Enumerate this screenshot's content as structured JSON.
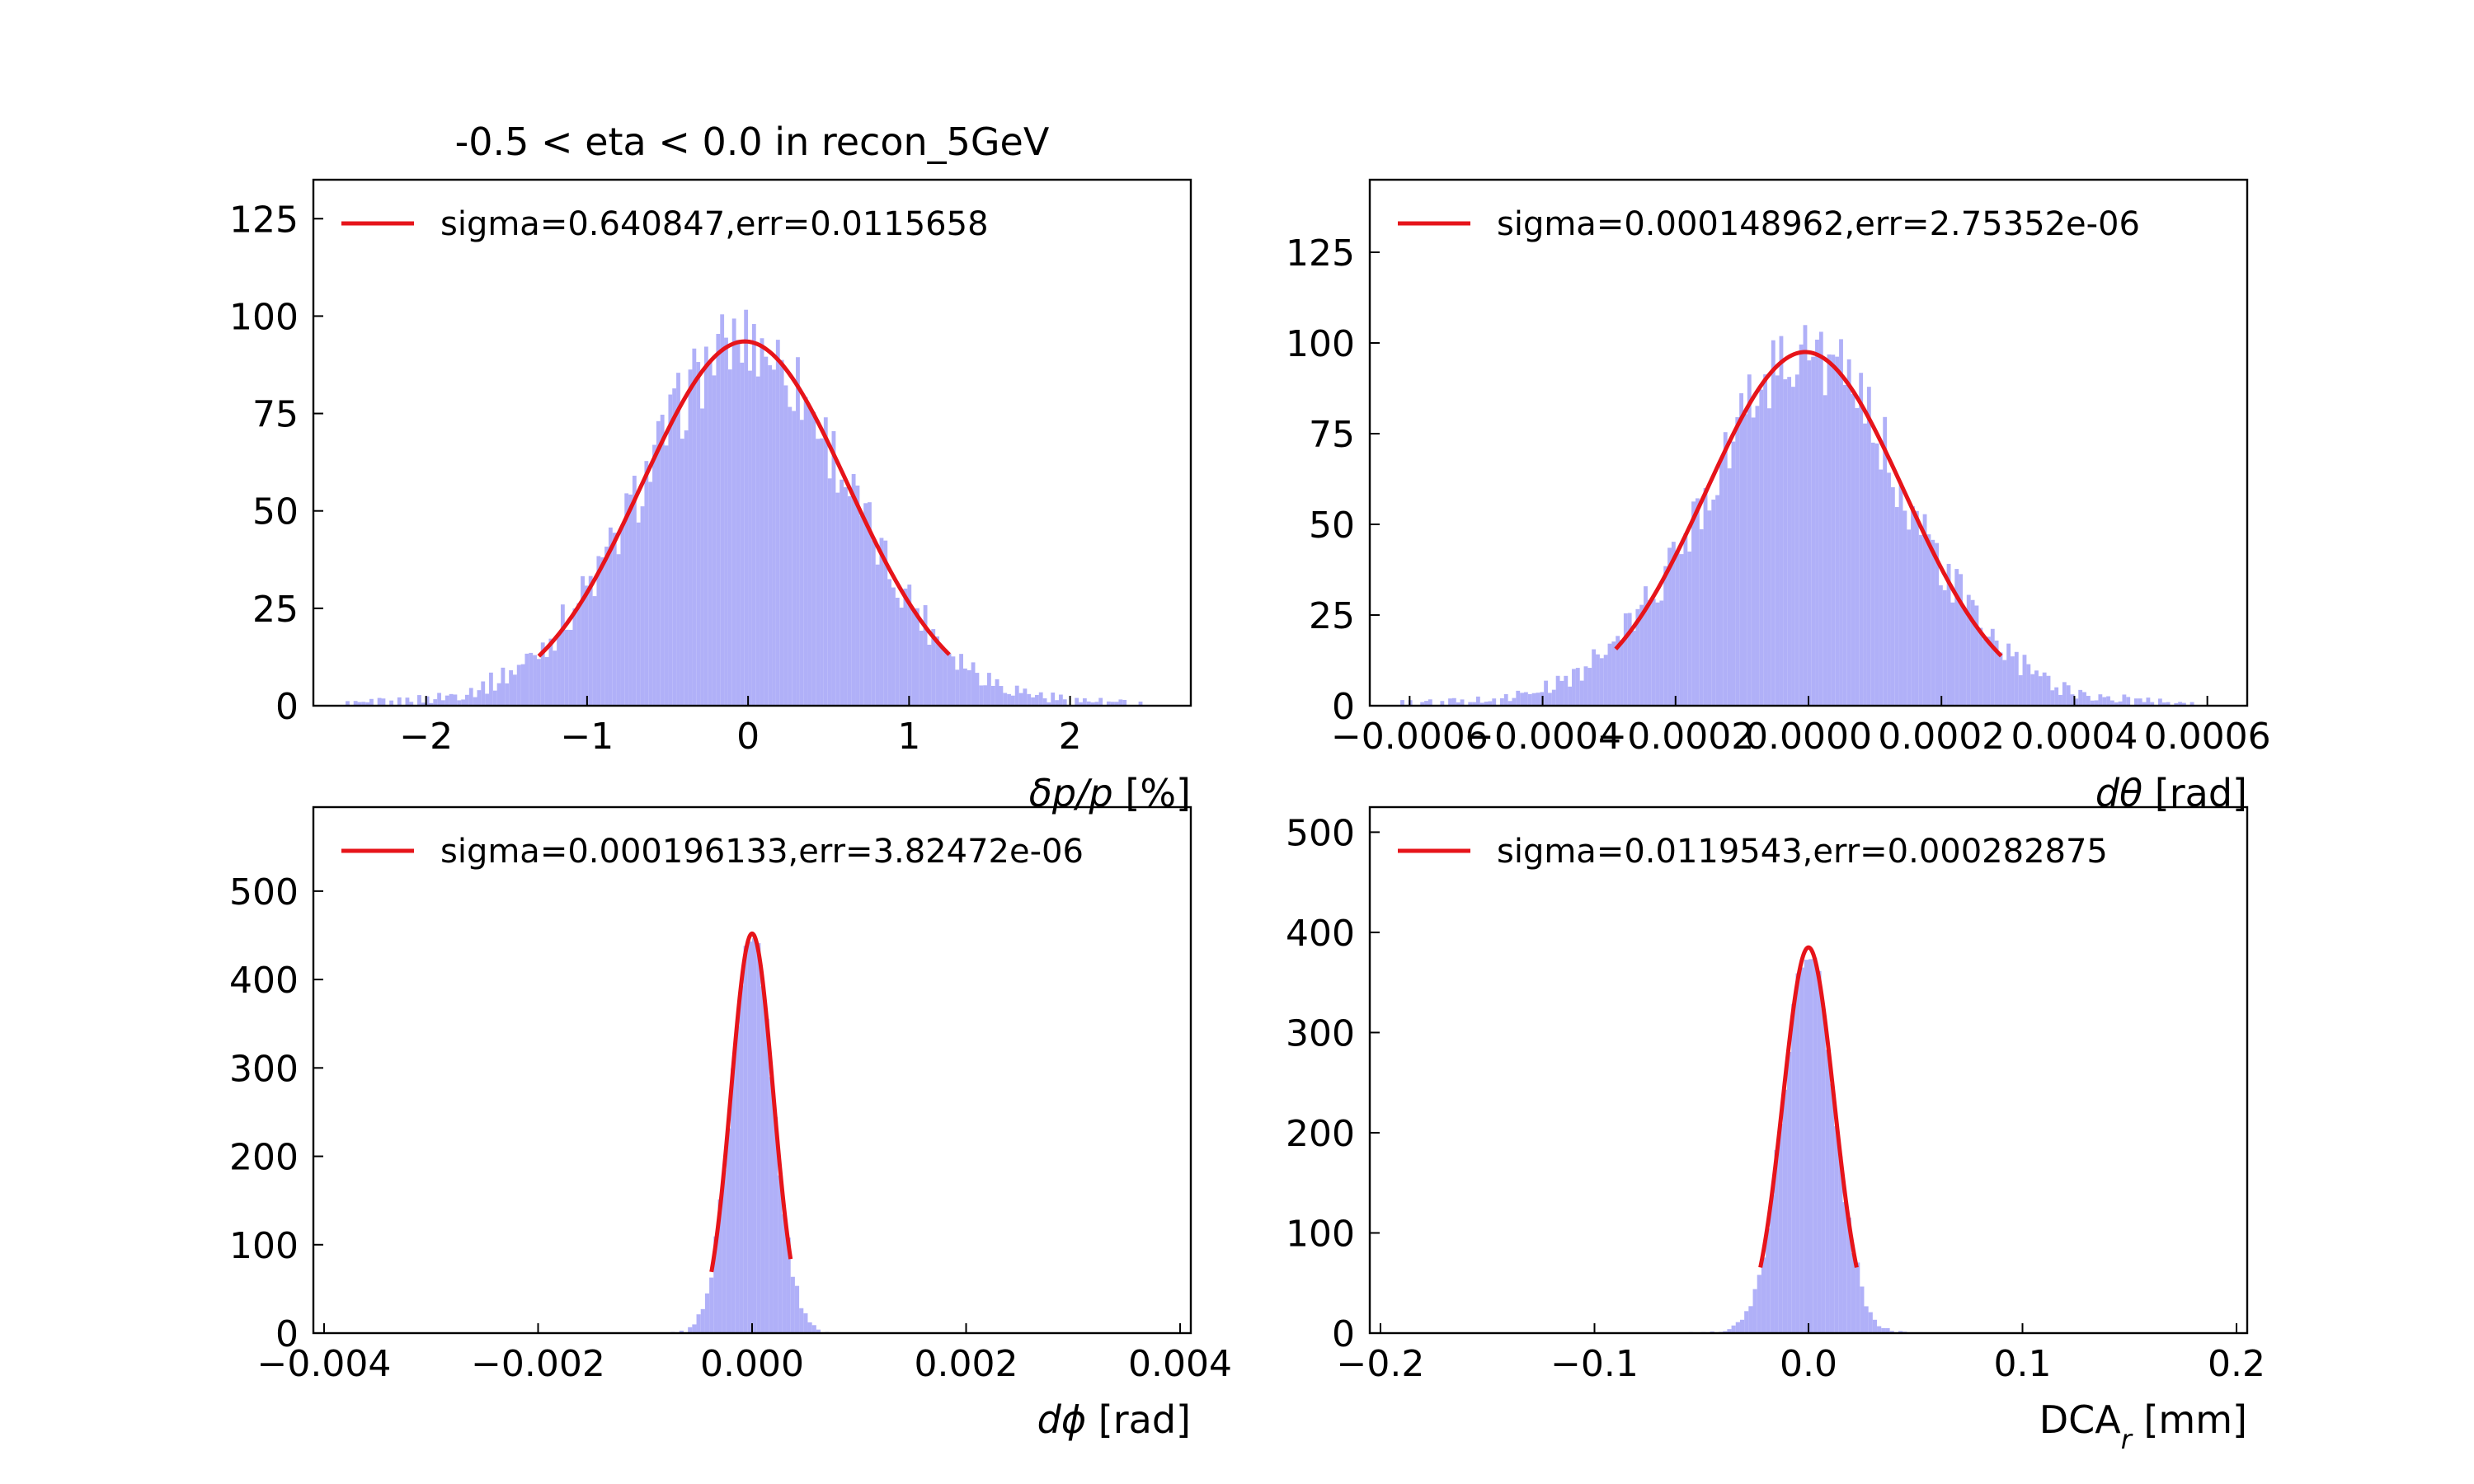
{
  "figure": {
    "title": "-0.5 < eta < 0.0 in recon_5GeV",
    "hist_color": "#b0b0f8",
    "fit_color": "#e6141a"
  },
  "chart_data": [
    {
      "type": "histogram",
      "xlabel_parts": [
        "δp/p",
        " [%]"
      ],
      "legend": "sigma=0.640847,err=0.0115658",
      "xlim": [
        -2.7,
        2.75
      ],
      "ylim": [
        0,
        135
      ],
      "xticks": [
        -2,
        -1,
        0,
        1,
        2
      ],
      "xtick_labels": [
        "−2",
        "−1",
        "0",
        "1",
        "2"
      ],
      "yticks": [
        0,
        25,
        50,
        75,
        100,
        125
      ],
      "ytick_labels": [
        "0",
        "25",
        "50",
        "75",
        "100",
        "125"
      ],
      "bins": {
        "start": -2.5,
        "end": 2.45,
        "count": 200
      },
      "fit": {
        "mean": -0.02,
        "sigma": 0.640847,
        "amplitude": 93.5,
        "range": [
          -1.3,
          1.25
        ]
      },
      "tail": 1.6,
      "peak_noise": 10
    },
    {
      "type": "histogram",
      "xlabel_parts": [
        "dθ",
        " [rad]"
      ],
      "legend": "sigma=0.000148962,err=2.75352e-06",
      "xlim": [
        -0.00066,
        0.00066
      ],
      "ylim": [
        0,
        145
      ],
      "xticks": [
        -0.0006,
        -0.0004,
        -0.0002,
        0.0,
        0.0002,
        0.0004,
        0.0006
      ],
      "xtick_labels": [
        "−0.0006",
        "−0.0004",
        "−0.0002",
        "0.0000",
        "0.0002",
        "0.0004",
        "0.0006"
      ],
      "yticks": [
        0,
        25,
        50,
        75,
        100,
        125
      ],
      "ytick_labels": [
        "0",
        "25",
        "50",
        "75",
        "100",
        "125"
      ],
      "bins": {
        "start": -0.00062,
        "end": 0.00058,
        "count": 200
      },
      "fit": {
        "mean": -5e-06,
        "sigma": 0.000148962,
        "amplitude": 97.5,
        "range": [
          -0.00029,
          0.00029
        ]
      },
      "tail": 2.2,
      "peak_noise": 10
    },
    {
      "type": "histogram",
      "xlabel_parts": [
        "dϕ",
        " [rad]"
      ],
      "legend": "sigma=0.000196133,err=3.82472e-06",
      "xlim": [
        -0.0041,
        0.0041
      ],
      "ylim": [
        0,
        595
      ],
      "xticks": [
        -0.004,
        -0.002,
        0.0,
        0.002,
        0.004
      ],
      "xtick_labels": [
        "−0.004",
        "−0.002",
        "0.000",
        "0.002",
        "0.004"
      ],
      "yticks": [
        0,
        100,
        200,
        300,
        400,
        500
      ],
      "ytick_labels": [
        "0",
        "100",
        "200",
        "300",
        "400",
        "500"
      ],
      "bins": {
        "start": -0.004,
        "end": 0.004,
        "count": 200
      },
      "fit": {
        "mean": 0.0,
        "sigma": 0.000196133,
        "amplitude": 452,
        "range": [
          -0.00038,
          0.00036
        ]
      },
      "tail": 1.5,
      "peak_noise": 12
    },
    {
      "type": "histogram",
      "xlabel_parts": [
        "DCA",
        "r",
        " [mm]"
      ],
      "legend": "sigma=0.0119543,err=0.000282875",
      "xlim": [
        -0.205,
        0.205
      ],
      "ylim": [
        0,
        525
      ],
      "xticks": [
        -0.2,
        -0.1,
        0.0,
        0.1,
        0.2
      ],
      "xtick_labels": [
        "−0.2",
        "−0.1",
        "0.0",
        "0.1",
        "0.2"
      ],
      "yticks": [
        0,
        100,
        200,
        300,
        400,
        500
      ],
      "ytick_labels": [
        "0",
        "100",
        "200",
        "300",
        "400",
        "500"
      ],
      "bins": {
        "start": -0.2,
        "end": 0.2,
        "count": 200
      },
      "fit": {
        "mean": 0.0,
        "sigma": 0.0119543,
        "amplitude": 385,
        "range": [
          -0.0225,
          0.0225
        ]
      },
      "tail": 1.4,
      "peak_noise": 12
    }
  ]
}
